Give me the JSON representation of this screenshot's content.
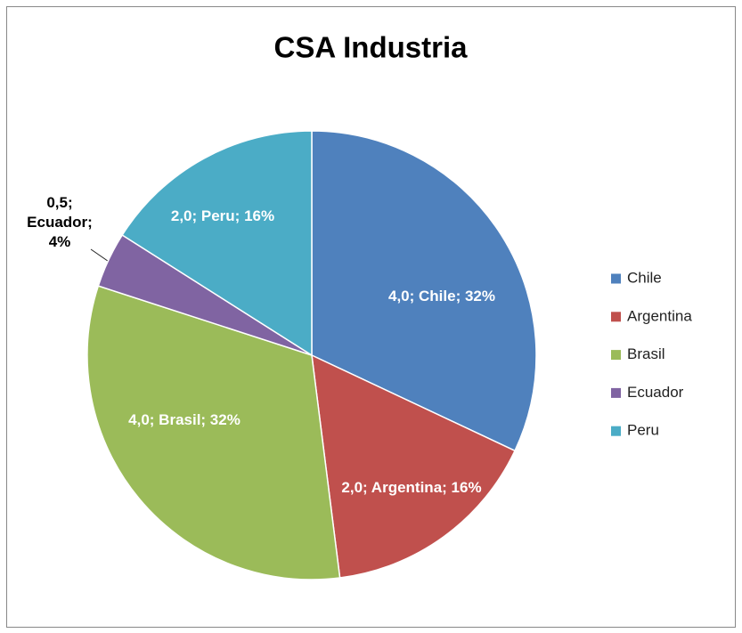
{
  "chart_data": {
    "type": "pie",
    "title": "CSA Industria",
    "categories": [
      "Chile",
      "Argentina",
      "Brasil",
      "Ecuador",
      "Peru"
    ],
    "values": [
      4.0,
      2.0,
      4.0,
      0.5,
      2.0
    ],
    "value_labels": [
      "4,0; Chile; 32%",
      "2,0; Argentina; 16%",
      "4,0; Brasil; 32%",
      "0,5; Ecuador; 4%",
      "2,0; Peru; 16%"
    ],
    "colors": [
      "#4f81bd",
      "#c0504d",
      "#9bbb59",
      "#8064a2",
      "#4bacc6"
    ],
    "legend": "right"
  }
}
